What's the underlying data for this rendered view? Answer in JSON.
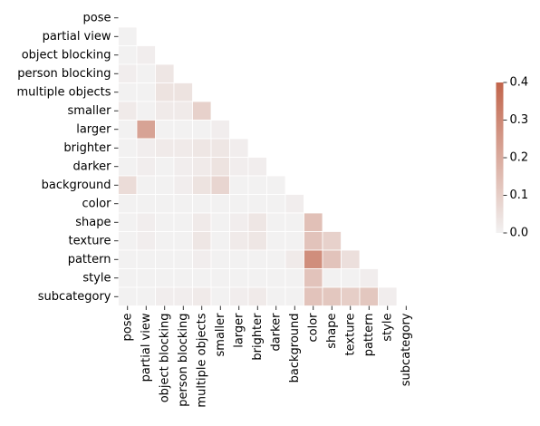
{
  "chart_data": {
    "type": "heatmap",
    "variant": "lower-triangle correlation-style matrix (diagonal and upper triangle masked)",
    "labels": [
      "pose",
      "partial view",
      "object blocking",
      "person blocking",
      "multiple objects",
      "smaller",
      "larger",
      "brighter",
      "darker",
      "background",
      "color",
      "shape",
      "texture",
      "pattern",
      "style",
      "subcategory"
    ],
    "values": [
      [
        null
      ],
      [
        0.0,
        null
      ],
      [
        0.0,
        0.01,
        null
      ],
      [
        0.01,
        0.0,
        0.03,
        null
      ],
      [
        0.0,
        0.0,
        0.04,
        0.04,
        null
      ],
      [
        0.02,
        0.0,
        0.02,
        0.02,
        0.09,
        null
      ],
      [
        0.0,
        0.22,
        0.0,
        0.0,
        0.0,
        0.01,
        null
      ],
      [
        0.0,
        0.01,
        0.02,
        0.02,
        0.03,
        0.03,
        0.01,
        null
      ],
      [
        0.0,
        0.01,
        0.0,
        0.01,
        0.02,
        0.04,
        0.01,
        0.01,
        null
      ],
      [
        0.06,
        0.0,
        0.0,
        0.01,
        0.04,
        0.08,
        0.0,
        0.0,
        0.0,
        null
      ],
      [
        0.0,
        0.0,
        0.0,
        0.0,
        0.0,
        0.0,
        0.0,
        0.0,
        0.0,
        0.01,
        null
      ],
      [
        0.0,
        0.01,
        0.0,
        0.0,
        0.02,
        0.0,
        0.01,
        0.03,
        0.0,
        0.0,
        0.14,
        null
      ],
      [
        0.0,
        0.01,
        0.0,
        0.0,
        0.03,
        0.0,
        0.02,
        0.03,
        0.0,
        0.0,
        0.13,
        0.09,
        null
      ],
      [
        0.0,
        0.0,
        0.0,
        0.0,
        0.01,
        0.0,
        0.0,
        0.0,
        0.0,
        0.02,
        0.28,
        0.13,
        0.05,
        null
      ],
      [
        0.0,
        0.0,
        0.0,
        0.0,
        0.0,
        0.0,
        0.0,
        0.0,
        0.0,
        0.0,
        0.13,
        0.0,
        0.0,
        0.01,
        null
      ],
      [
        0.0,
        0.0,
        0.01,
        0.01,
        0.02,
        0.0,
        0.01,
        0.02,
        0.0,
        0.0,
        0.13,
        0.12,
        0.1,
        0.12,
        0.01,
        null
      ]
    ],
    "vmin": 0.0,
    "vmax": 0.4,
    "colorbar": {
      "ticks": [
        "0.0",
        "0.1",
        "0.2",
        "0.3",
        "0.4"
      ],
      "placement": "right",
      "low_color": "#f2f1f1",
      "high_color": "#c1644a"
    },
    "cell_border_color": "#ffffff",
    "grid": false,
    "title": "",
    "xlabel": "",
    "ylabel": ""
  }
}
